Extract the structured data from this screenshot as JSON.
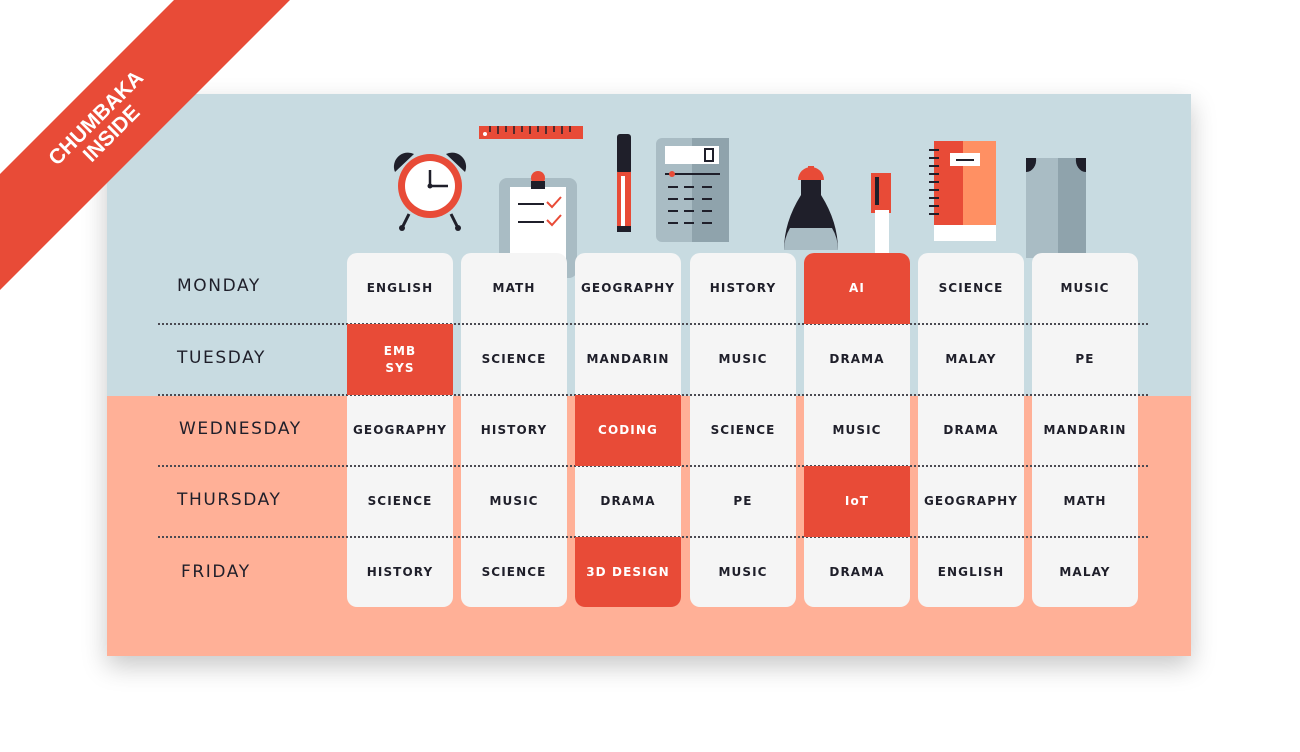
{
  "banner": {
    "line1": "CHUMBAKA",
    "line2": "INSIDE"
  },
  "days": [
    "MONDAY",
    "TUESDAY",
    "WEDNESDAY",
    "THURSDAY",
    "FRIDAY"
  ],
  "schedule": [
    [
      "ENGLISH",
      "MATH",
      "GEOGRAPHY",
      "HISTORY",
      "AI",
      "SCIENCE",
      "MUSIC"
    ],
    [
      "EMB SYS",
      "SCIENCE",
      "MANDARIN",
      "MUSIC",
      "DRAMA",
      "MALAY",
      "PE"
    ],
    [
      "GEOGRAPHY",
      "HISTORY",
      "CODING",
      "SCIENCE",
      "MUSIC",
      "DRAMA",
      "MANDARIN"
    ],
    [
      "SCIENCE",
      "MUSIC",
      "DRAMA",
      "PE",
      "IoT",
      "GEOGRAPHY",
      "MATH"
    ],
    [
      "HISTORY",
      "SCIENCE",
      "3D DESIGN",
      "MUSIC",
      "DRAMA",
      "ENGLISH",
      "MALAY"
    ]
  ],
  "highlighted": [
    "0-4",
    "1-0",
    "2-2",
    "3-4",
    "4-2"
  ],
  "colors": {
    "accent": "#e84b37",
    "board_top": "#c8dbe1",
    "board_bottom": "#ffb097",
    "cell": "#f5f5f5",
    "text": "#1f1f2a"
  },
  "illustrations": [
    "alarm-clock-icon",
    "ruler-icon",
    "clipboard-icon",
    "marker-icon",
    "calculator-icon",
    "flask-icon",
    "pen-icon",
    "notebook-icon",
    "pants-icon"
  ]
}
